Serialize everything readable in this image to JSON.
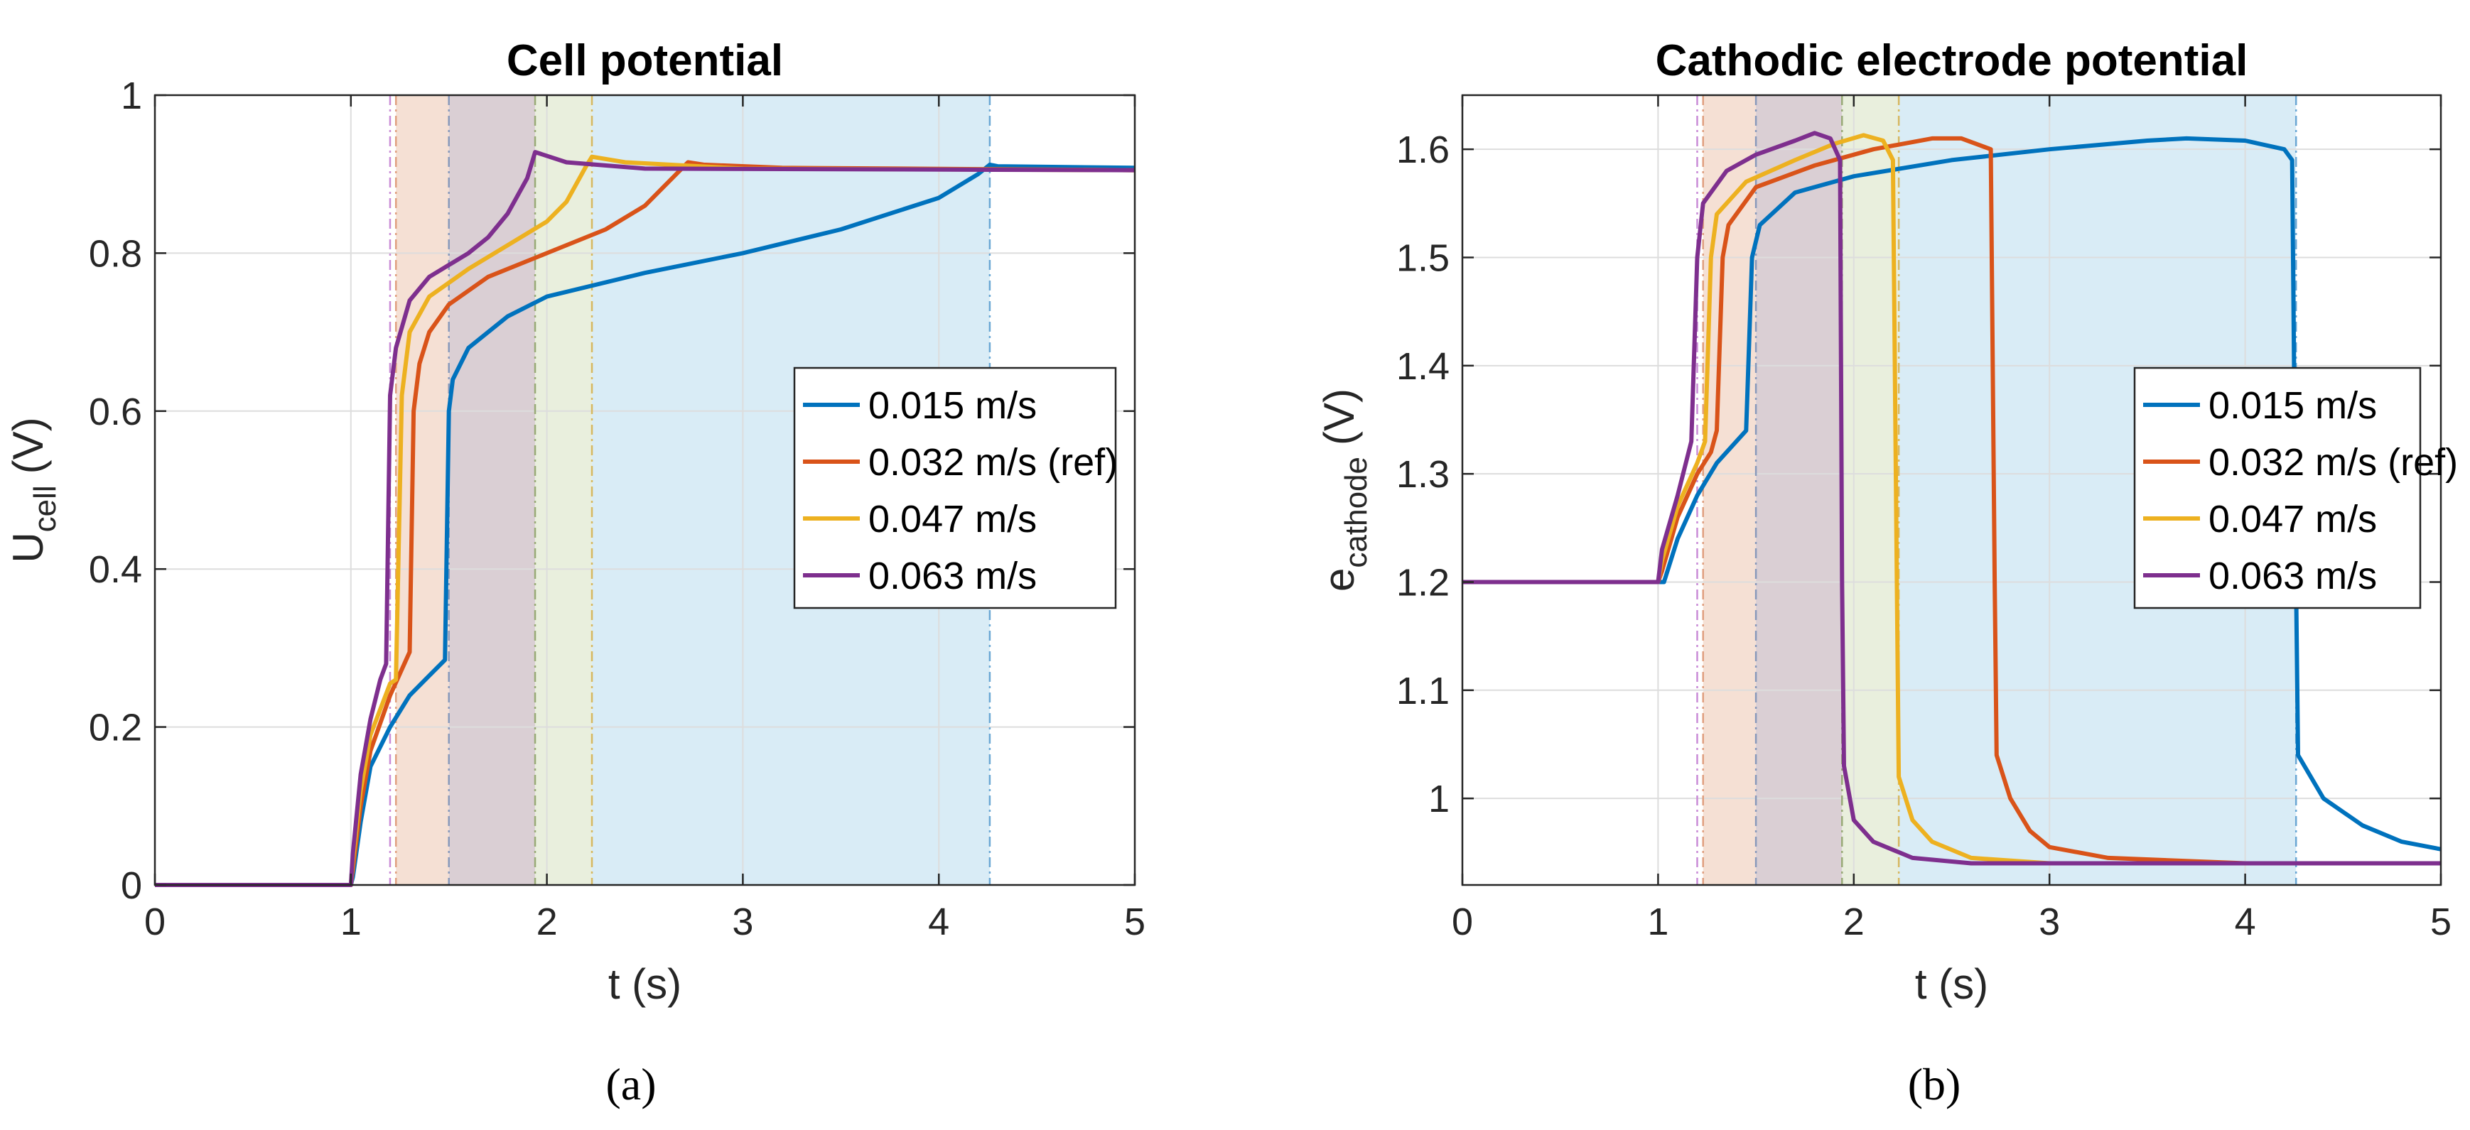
{
  "chart_data": [
    {
      "type": "line",
      "panel_label": "(a)",
      "title": "Cell potential",
      "xlabel": "t (s)",
      "ylabel_main": "U",
      "ylabel_sub": "cell",
      "ylabel_unit": "(V)",
      "xlim": [
        0,
        5
      ],
      "ylim": [
        0,
        1
      ],
      "xticks": [
        0,
        1,
        2,
        3,
        4,
        5
      ],
      "yticks": [
        0,
        0.2,
        0.4,
        0.6,
        0.8,
        1
      ],
      "ytick_labels": [
        "0",
        "0.2",
        "0.4",
        "0.6",
        "0.8",
        "1"
      ],
      "grid": true,
      "legend_position": "right",
      "vlines": [
        1.2,
        1.23,
        1.5,
        1.94,
        2.23,
        4.26
      ],
      "regions": [
        {
          "x": [
            1.23,
            1.5
          ],
          "color": "#f2d6c5"
        },
        {
          "x": [
            1.5,
            1.94
          ],
          "color": "#cdbfc6"
        },
        {
          "x": [
            1.94,
            2.23
          ],
          "color": "#e2ead2"
        },
        {
          "x": [
            2.23,
            4.26
          ],
          "color": "#cce5f3"
        }
      ],
      "series": [
        {
          "name": "0.015 m/s",
          "color": "#0072BD",
          "points": [
            [
              0,
              0
            ],
            [
              1.0,
              0
            ],
            [
              1.01,
              0.01
            ],
            [
              1.05,
              0.08
            ],
            [
              1.1,
              0.15
            ],
            [
              1.2,
              0.2
            ],
            [
              1.3,
              0.24
            ],
            [
              1.4,
              0.265
            ],
            [
              1.48,
              0.285
            ],
            [
              1.5,
              0.6
            ],
            [
              1.52,
              0.64
            ],
            [
              1.6,
              0.68
            ],
            [
              1.8,
              0.72
            ],
            [
              2.0,
              0.745
            ],
            [
              2.5,
              0.775
            ],
            [
              3.0,
              0.8
            ],
            [
              3.5,
              0.83
            ],
            [
              4.0,
              0.87
            ],
            [
              4.2,
              0.9
            ],
            [
              4.26,
              0.912
            ],
            [
              4.3,
              0.91
            ],
            [
              5,
              0.908
            ]
          ]
        },
        {
          "name": "0.032 m/s (ref)",
          "color": "#D95319",
          "points": [
            [
              0,
              0
            ],
            [
              1.0,
              0
            ],
            [
              1.01,
              0.02
            ],
            [
              1.05,
              0.1
            ],
            [
              1.1,
              0.17
            ],
            [
              1.2,
              0.24
            ],
            [
              1.3,
              0.295
            ],
            [
              1.32,
              0.6
            ],
            [
              1.35,
              0.66
            ],
            [
              1.4,
              0.7
            ],
            [
              1.5,
              0.735
            ],
            [
              1.7,
              0.77
            ],
            [
              2.0,
              0.8
            ],
            [
              2.3,
              0.83
            ],
            [
              2.5,
              0.86
            ],
            [
              2.6,
              0.885
            ],
            [
              2.72,
              0.915
            ],
            [
              2.8,
              0.912
            ],
            [
              3.2,
              0.908
            ],
            [
              5,
              0.905
            ]
          ]
        },
        {
          "name": "0.047 m/s",
          "color": "#EDB120",
          "points": [
            [
              0,
              0
            ],
            [
              1.0,
              0
            ],
            [
              1.01,
              0.03
            ],
            [
              1.05,
              0.12
            ],
            [
              1.1,
              0.19
            ],
            [
              1.2,
              0.255
            ],
            [
              1.23,
              0.26
            ],
            [
              1.26,
              0.62
            ],
            [
              1.3,
              0.7
            ],
            [
              1.4,
              0.745
            ],
            [
              1.6,
              0.78
            ],
            [
              1.8,
              0.81
            ],
            [
              2.0,
              0.84
            ],
            [
              2.1,
              0.865
            ],
            [
              2.2,
              0.91
            ],
            [
              2.23,
              0.922
            ],
            [
              2.4,
              0.915
            ],
            [
              3.0,
              0.907
            ],
            [
              5,
              0.905
            ]
          ]
        },
        {
          "name": "0.063 m/s",
          "color": "#7E2F8E",
          "points": [
            [
              0,
              0
            ],
            [
              1.0,
              0
            ],
            [
              1.01,
              0.04
            ],
            [
              1.05,
              0.14
            ],
            [
              1.1,
              0.21
            ],
            [
              1.15,
              0.26
            ],
            [
              1.18,
              0.28
            ],
            [
              1.2,
              0.62
            ],
            [
              1.23,
              0.68
            ],
            [
              1.3,
              0.74
            ],
            [
              1.4,
              0.77
            ],
            [
              1.5,
              0.785
            ],
            [
              1.6,
              0.8
            ],
            [
              1.7,
              0.82
            ],
            [
              1.8,
              0.85
            ],
            [
              1.9,
              0.895
            ],
            [
              1.94,
              0.928
            ],
            [
              2.1,
              0.915
            ],
            [
              2.5,
              0.907
            ],
            [
              5,
              0.905
            ]
          ]
        }
      ]
    },
    {
      "type": "line",
      "panel_label": "(b)",
      "title": "Cathodic electrode potential",
      "xlabel": "t (s)",
      "ylabel_main": "e",
      "ylabel_sub": "cathode",
      "ylabel_unit": "(V)",
      "xlim": [
        0,
        5
      ],
      "ylim": [
        0.92,
        1.65
      ],
      "xticks": [
        0,
        1,
        2,
        3,
        4,
        5
      ],
      "yticks": [
        1,
        1.1,
        1.2,
        1.3,
        1.4,
        1.5,
        1.6
      ],
      "ytick_labels": [
        "1",
        "1.1",
        "1.2",
        "1.3",
        "1.4",
        "1.5",
        "1.6"
      ],
      "grid": true,
      "legend_position": "right",
      "vlines": [
        1.2,
        1.23,
        1.5,
        1.94,
        2.23,
        4.26
      ],
      "regions": [
        {
          "x": [
            1.23,
            1.5
          ],
          "color": "#f2d6c5"
        },
        {
          "x": [
            1.5,
            1.94
          ],
          "color": "#cdbfc6"
        },
        {
          "x": [
            1.94,
            2.23
          ],
          "color": "#e2ead2"
        },
        {
          "x": [
            2.23,
            4.26
          ],
          "color": "#cce5f3"
        }
      ],
      "series": [
        {
          "name": "0.015 m/s",
          "color": "#0072BD",
          "points": [
            [
              0,
              1.2
            ],
            [
              1.0,
              1.2
            ],
            [
              1.03,
              1.2
            ],
            [
              1.1,
              1.24
            ],
            [
              1.2,
              1.28
            ],
            [
              1.3,
              1.31
            ],
            [
              1.45,
              1.34
            ],
            [
              1.48,
              1.5
            ],
            [
              1.52,
              1.53
            ],
            [
              1.7,
              1.56
            ],
            [
              2.0,
              1.575
            ],
            [
              2.5,
              1.59
            ],
            [
              3.0,
              1.6
            ],
            [
              3.5,
              1.608
            ],
            [
              3.7,
              1.61
            ],
            [
              4.0,
              1.608
            ],
            [
              4.2,
              1.6
            ],
            [
              4.24,
              1.59
            ],
            [
              4.26,
              1.2
            ],
            [
              4.27,
              1.04
            ],
            [
              4.4,
              1.0
            ],
            [
              4.6,
              0.975
            ],
            [
              4.8,
              0.96
            ],
            [
              5,
              0.953
            ]
          ]
        },
        {
          "name": "0.032 m/s (ref)",
          "color": "#D95319",
          "points": [
            [
              0,
              1.2
            ],
            [
              1.0,
              1.2
            ],
            [
              1.02,
              1.21
            ],
            [
              1.1,
              1.26
            ],
            [
              1.2,
              1.3
            ],
            [
              1.27,
              1.32
            ],
            [
              1.3,
              1.34
            ],
            [
              1.33,
              1.5
            ],
            [
              1.36,
              1.53
            ],
            [
              1.5,
              1.565
            ],
            [
              1.8,
              1.585
            ],
            [
              2.1,
              1.6
            ],
            [
              2.4,
              1.61
            ],
            [
              2.55,
              1.61
            ],
            [
              2.7,
              1.6
            ],
            [
              2.72,
              1.2
            ],
            [
              2.73,
              1.04
            ],
            [
              2.8,
              1.0
            ],
            [
              2.9,
              0.97
            ],
            [
              3.0,
              0.955
            ],
            [
              3.3,
              0.945
            ],
            [
              4.0,
              0.94
            ],
            [
              5,
              0.94
            ]
          ]
        },
        {
          "name": "0.047 m/s",
          "color": "#EDB120",
          "points": [
            [
              0,
              1.2
            ],
            [
              1.0,
              1.2
            ],
            [
              1.02,
              1.22
            ],
            [
              1.1,
              1.27
            ],
            [
              1.2,
              1.31
            ],
            [
              1.24,
              1.33
            ],
            [
              1.27,
              1.5
            ],
            [
              1.3,
              1.54
            ],
            [
              1.45,
              1.57
            ],
            [
              1.7,
              1.59
            ],
            [
              1.9,
              1.605
            ],
            [
              2.05,
              1.613
            ],
            [
              2.15,
              1.608
            ],
            [
              2.2,
              1.59
            ],
            [
              2.22,
              1.2
            ],
            [
              2.23,
              1.02
            ],
            [
              2.3,
              0.98
            ],
            [
              2.4,
              0.96
            ],
            [
              2.6,
              0.945
            ],
            [
              3.0,
              0.94
            ],
            [
              5,
              0.94
            ]
          ]
        },
        {
          "name": "0.063 m/s",
          "color": "#7E2F8E",
          "points": [
            [
              0,
              1.2
            ],
            [
              1.0,
              1.2
            ],
            [
              1.02,
              1.23
            ],
            [
              1.1,
              1.28
            ],
            [
              1.17,
              1.33
            ],
            [
              1.2,
              1.5
            ],
            [
              1.23,
              1.55
            ],
            [
              1.35,
              1.58
            ],
            [
              1.5,
              1.595
            ],
            [
              1.7,
              1.608
            ],
            [
              1.8,
              1.615
            ],
            [
              1.88,
              1.61
            ],
            [
              1.93,
              1.59
            ],
            [
              1.94,
              1.2
            ],
            [
              1.95,
              1.03
            ],
            [
              2.0,
              0.98
            ],
            [
              2.1,
              0.96
            ],
            [
              2.3,
              0.945
            ],
            [
              2.6,
              0.94
            ],
            [
              5,
              0.94
            ]
          ]
        }
      ]
    }
  ]
}
